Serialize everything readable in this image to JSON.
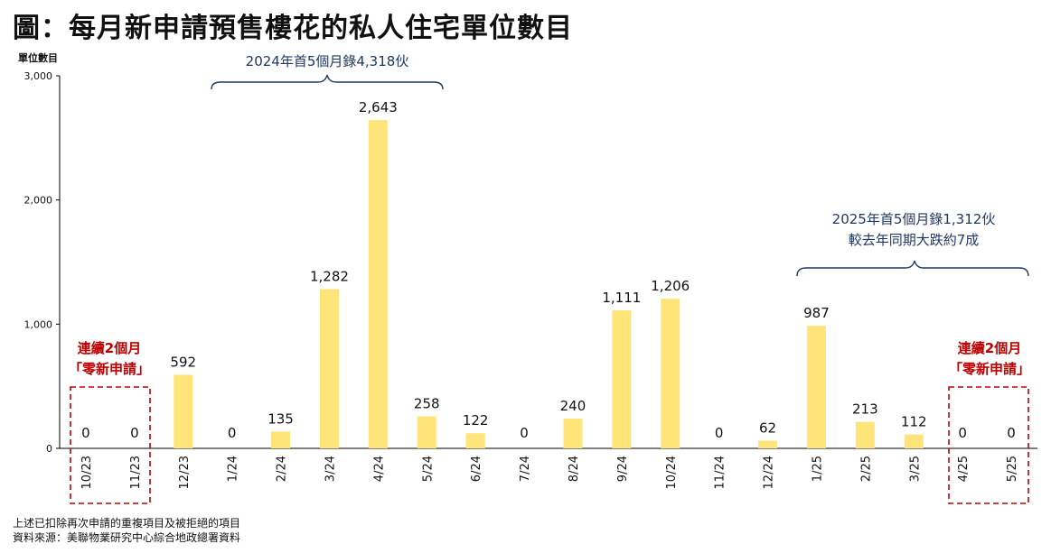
{
  "title": "圖：每月新申請預售樓花的私人住宅單位數目",
  "chart_data": {
    "type": "bar",
    "ylabel": "單位數目",
    "ylim": [
      0,
      3000
    ],
    "yticks": [
      "0",
      "1,000",
      "2,000",
      "3,000"
    ],
    "categories": [
      "10/23",
      "11/23",
      "12/23",
      "1/24",
      "2/24",
      "3/24",
      "4/24",
      "5/24",
      "6/24",
      "7/24",
      "8/24",
      "9/24",
      "10/24",
      "11/24",
      "12/24",
      "1/25",
      "2/25",
      "3/25",
      "4/25",
      "5/25"
    ],
    "values": [
      0,
      0,
      592,
      0,
      135,
      1282,
      2643,
      258,
      122,
      0,
      240,
      1111,
      1206,
      0,
      62,
      987,
      213,
      112,
      0,
      0
    ],
    "data_labels": [
      "0",
      "0",
      "592",
      "0",
      "135",
      "1,282",
      "2,643",
      "258",
      "122",
      "0",
      "240",
      "1,111",
      "1,206",
      "0",
      "62",
      "987",
      "213",
      "112",
      "0",
      "0"
    ],
    "bar_color": "#FFE47A",
    "annotations": {
      "bracket_2024": "2024年首5個月錄4,318伙",
      "bracket_2025_line1": "2025年首5個月錄1,312伙",
      "bracket_2025_line2": "較去年同期大跌約7成",
      "zero_left_line1": "連續2個月",
      "zero_left_line2": "「零新申請」",
      "zero_right_line1": "連續2個月",
      "zero_right_line2": "「零新申請」"
    },
    "annotation_colors": {
      "bracket": "#1F3864",
      "zero_box": "#C00000"
    }
  },
  "notes": {
    "line1": "上述已扣除再次申請的重複項目及被拒絕的項目",
    "line2": "資料來源：美聯物業研究中心綜合地政總署資料"
  }
}
